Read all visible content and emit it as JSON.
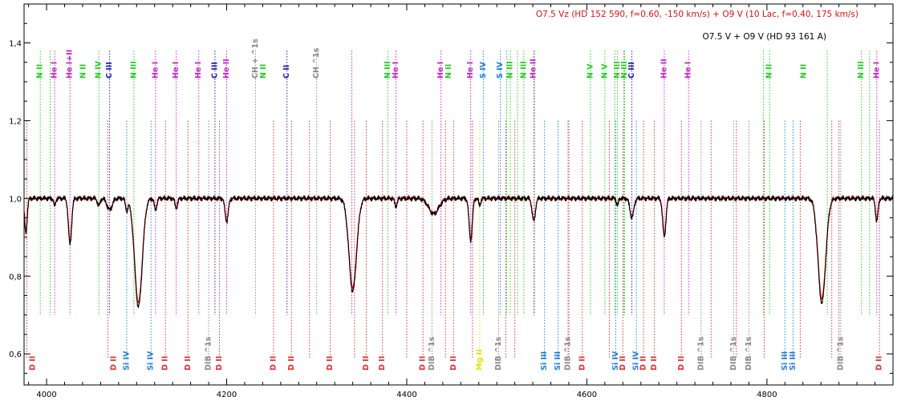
{
  "chart_data": {
    "type": "line",
    "title": "",
    "xlabel": "",
    "ylabel": "",
    "xlim": [
      3975,
      4940
    ],
    "ylim": [
      0.52,
      1.5
    ],
    "grid": false,
    "x_ticks": [
      4000,
      4200,
      4400,
      4600,
      4800
    ],
    "y_ticks": [
      0.6,
      0.8,
      1.0,
      1.2,
      1.4
    ],
    "x_tick_labels": [
      "4000",
      "4200",
      "4400",
      "4600",
      "4800"
    ],
    "y_tick_labels": [
      "0,6",
      "0,8",
      "1,0",
      "1,2",
      "1,4"
    ],
    "legend": [
      {
        "text": "O7.5 Vz (HD 152 590, f=0.60, -150 km/s) + O9 V (10 Lac, f=0.40, 175 km/s)",
        "color": "#e01010"
      },
      {
        "text": "O7.5 V + O9 V (HD 93 161 A)",
        "color": "#000000"
      }
    ],
    "legend_position": "top-right",
    "continuum": 1.0,
    "absorption_lines": [
      {
        "x": 3977,
        "depth": 0.09,
        "width": 2
      },
      {
        "x": 4009,
        "depth": 0.02,
        "width": 1.5
      },
      {
        "x": 4026,
        "depth": 0.12,
        "width": 2.5
      },
      {
        "x": 4058,
        "depth": 0.02,
        "width": 2
      },
      {
        "x": 4070,
        "depth": 0.03,
        "width": 4
      },
      {
        "x": 4089,
        "depth": 0.03,
        "width": 2
      },
      {
        "x": 4102,
        "depth": 0.28,
        "width": 6
      },
      {
        "x": 4121,
        "depth": 0.03,
        "width": 2
      },
      {
        "x": 4144,
        "depth": 0.025,
        "width": 2
      },
      {
        "x": 4200,
        "depth": 0.06,
        "width": 2.5
      },
      {
        "x": 4340,
        "depth": 0.24,
        "width": 6
      },
      {
        "x": 4388,
        "depth": 0.02,
        "width": 2
      },
      {
        "x": 4430,
        "depth": 0.04,
        "width": 8
      },
      {
        "x": 4471,
        "depth": 0.11,
        "width": 2.5
      },
      {
        "x": 4481,
        "depth": 0.02,
        "width": 1.5
      },
      {
        "x": 4541,
        "depth": 0.06,
        "width": 2.5
      },
      {
        "x": 4634,
        "depth": 0.02,
        "width": 1.5
      },
      {
        "x": 4650,
        "depth": 0.05,
        "width": 3
      },
      {
        "x": 4686,
        "depth": 0.1,
        "width": 2.5
      },
      {
        "x": 4861,
        "depth": 0.27,
        "width": 6
      },
      {
        "x": 4922,
        "depth": 0.06,
        "width": 2
      }
    ],
    "series": [
      {
        "name": "O7.5 Vz (HD 152 590, f=0.60, -150 km/s) + O9 V (10 Lac, f=0.40, 175 km/s)",
        "color": "#e01010",
        "role": "model"
      },
      {
        "name": "O7.5 V + O9 V (HD 93 161 A)",
        "color": "#000000",
        "role": "observed"
      }
    ],
    "top_line_groups": [
      {
        "color": "#22cc22",
        "x": [
          3993,
          4004,
          4058,
          4097,
          4379,
          4511,
          4515,
          4523,
          4530,
          4542,
          4604,
          4620,
          4631,
          4634,
          4641,
          4642,
          4796,
          4803,
          4867,
          4905,
          4914
        ]
      },
      {
        "color": "#cc22cc",
        "x": [
          4009,
          4026,
          4121,
          4144,
          4169,
          4200,
          4339,
          4388,
          4438,
          4471,
          4541,
          4686,
          4713,
          4922
        ]
      },
      {
        "color": "#2020bb",
        "x": [
          4070,
          4187,
          4267,
          4650
        ]
      },
      {
        "color": "#2080dd",
        "x": [
          4485,
          4504
        ]
      },
      {
        "color": "#888888",
        "x": [
          4232,
          4300
        ]
      }
    ],
    "top_labels": [
      {
        "x": 3993,
        "text": "N II",
        "color": "#22cc22"
      },
      {
        "x": 4009,
        "text": "He I",
        "color": "#cc22cc"
      },
      {
        "x": 4026,
        "text": "He I+II",
        "color": "#cc22cc"
      },
      {
        "x": 4041,
        "text": "N II",
        "color": "#22cc22"
      },
      {
        "x": 4058,
        "text": "N IV",
        "color": "#22cc22"
      },
      {
        "x": 4070,
        "text": "C III",
        "color": "#2020bb"
      },
      {
        "x": 4097,
        "text": "N III",
        "color": "#22cc22"
      },
      {
        "x": 4121,
        "text": "He I",
        "color": "#cc22cc"
      },
      {
        "x": 4144,
        "text": "He I",
        "color": "#cc22cc"
      },
      {
        "x": 4169,
        "text": "He I",
        "color": "#cc22cc"
      },
      {
        "x": 4187,
        "text": "C III",
        "color": "#2020bb"
      },
      {
        "x": 4200,
        "text": "He II",
        "color": "#cc22cc"
      },
      {
        "x": 4232,
        "text": "CH + ^1s",
        "color": "#888888"
      },
      {
        "x": 4241,
        "text": "N II",
        "color": "#22cc22"
      },
      {
        "x": 4267,
        "text": "C II",
        "color": "#2020bb"
      },
      {
        "x": 4300,
        "text": "CH ^1s",
        "color": "#888888"
      },
      {
        "x": 4379,
        "text": "N III",
        "color": "#22cc22"
      },
      {
        "x": 4388,
        "text": "He I",
        "color": "#cc22cc"
      },
      {
        "x": 4438,
        "text": "He I",
        "color": "#cc22cc"
      },
      {
        "x": 4447,
        "text": "N II",
        "color": "#22cc22"
      },
      {
        "x": 4471,
        "text": "He I",
        "color": "#cc22cc"
      },
      {
        "x": 4485,
        "text": "S IV",
        "color": "#2080dd"
      },
      {
        "x": 4504,
        "text": "S IV",
        "color": "#2080dd"
      },
      {
        "x": 4515,
        "text": "N III",
        "color": "#22cc22"
      },
      {
        "x": 4530,
        "text": "N III",
        "color": "#22cc22"
      },
      {
        "x": 4541,
        "text": "He II",
        "color": "#cc22cc"
      },
      {
        "x": 4604,
        "text": "N V",
        "color": "#22cc22"
      },
      {
        "x": 4620,
        "text": "N V",
        "color": "#22cc22"
      },
      {
        "x": 4634,
        "text": "N III",
        "color": "#22cc22"
      },
      {
        "x": 4642,
        "text": "N III",
        "color": "#22cc22"
      },
      {
        "x": 4650,
        "text": "C III",
        "color": "#2020bb"
      },
      {
        "x": 4686,
        "text": "He II",
        "color": "#cc22cc"
      },
      {
        "x": 4713,
        "text": "He I",
        "color": "#cc22cc"
      },
      {
        "x": 4803,
        "text": "N II",
        "color": "#22cc22"
      },
      {
        "x": 4841,
        "text": "N II",
        "color": "#22cc22"
      },
      {
        "x": 4905,
        "text": "N III",
        "color": "#22cc22"
      },
      {
        "x": 4922,
        "text": "He I",
        "color": "#cc22cc"
      }
    ],
    "bottom_line_groups": [
      {
        "color": "#e03030",
        "x": [
          3978,
          4068,
          4132,
          4157,
          4192,
          4252,
          4272,
          4292,
          4315,
          4342,
          4355,
          4373,
          4400,
          4418,
          4443,
          4452,
          4473,
          4510,
          4520,
          4580,
          4595,
          4625,
          4640,
          4663,
          4675,
          4705,
          4738,
          4766,
          4797,
          4837,
          4872,
          4880,
          4925
        ]
      },
      {
        "color": "#2080dd",
        "x": [
          4089,
          4116,
          4553,
          4568,
          4632,
          4655,
          4820,
          4829
        ]
      },
      {
        "color": "#888888",
        "x": [
          4180,
          4428,
          4502,
          4579,
          4727,
          4763,
          4780,
          4882
        ]
      },
      {
        "color": "#e8e000",
        "x": [
          4481
        ]
      }
    ],
    "bottom_labels": [
      {
        "x": 3985,
        "text": "D II",
        "color": "#e03030"
      },
      {
        "x": 4075,
        "text": "D II",
        "color": "#e03030"
      },
      {
        "x": 4089,
        "text": "Si IV",
        "color": "#2080dd"
      },
      {
        "x": 4116,
        "text": "Si IV",
        "color": "#2080dd"
      },
      {
        "x": 4132,
        "text": "D II",
        "color": "#e03030"
      },
      {
        "x": 4157,
        "text": "D II",
        "color": "#e03030"
      },
      {
        "x": 4180,
        "text": "DIB ^1s",
        "color": "#888888"
      },
      {
        "x": 4192,
        "text": "D II",
        "color": "#e03030"
      },
      {
        "x": 4252,
        "text": "D II",
        "color": "#e03030"
      },
      {
        "x": 4272,
        "text": "D II",
        "color": "#e03030"
      },
      {
        "x": 4315,
        "text": "D II",
        "color": "#e03030"
      },
      {
        "x": 4355,
        "text": "D II",
        "color": "#e03030"
      },
      {
        "x": 4373,
        "text": "D II",
        "color": "#e03030"
      },
      {
        "x": 4418,
        "text": "D II",
        "color": "#e03030"
      },
      {
        "x": 4428,
        "text": "DIB ^1s",
        "color": "#888888"
      },
      {
        "x": 4452,
        "text": "D II",
        "color": "#e03030"
      },
      {
        "x": 4481,
        "text": "Mg II",
        "color": "#e8e000"
      },
      {
        "x": 4502,
        "text": "DIB ^1s",
        "color": "#888888"
      },
      {
        "x": 4553,
        "text": "Si III",
        "color": "#2080dd"
      },
      {
        "x": 4568,
        "text": "Si III",
        "color": "#2080dd"
      },
      {
        "x": 4579,
        "text": "DIB ^1s",
        "color": "#888888"
      },
      {
        "x": 4595,
        "text": "D II",
        "color": "#e03030"
      },
      {
        "x": 4632,
        "text": "Si IV",
        "color": "#2080dd"
      },
      {
        "x": 4640,
        "text": "D II",
        "color": "#e03030"
      },
      {
        "x": 4655,
        "text": "Si IV",
        "color": "#2080dd"
      },
      {
        "x": 4663,
        "text": "D II",
        "color": "#e03030"
      },
      {
        "x": 4675,
        "text": "D II",
        "color": "#e03030"
      },
      {
        "x": 4705,
        "text": "D II",
        "color": "#e03030"
      },
      {
        "x": 4727,
        "text": "DIB ^1s",
        "color": "#888888"
      },
      {
        "x": 4763,
        "text": "DIB ^1s",
        "color": "#888888"
      },
      {
        "x": 4780,
        "text": "DIB ^1s",
        "color": "#888888"
      },
      {
        "x": 4820,
        "text": "Si III",
        "color": "#2080dd"
      },
      {
        "x": 4829,
        "text": "Si III",
        "color": "#2080dd"
      },
      {
        "x": 4882,
        "text": "DIB ^1s",
        "color": "#888888"
      },
      {
        "x": 4925,
        "text": "D II",
        "color": "#e03030"
      }
    ]
  }
}
